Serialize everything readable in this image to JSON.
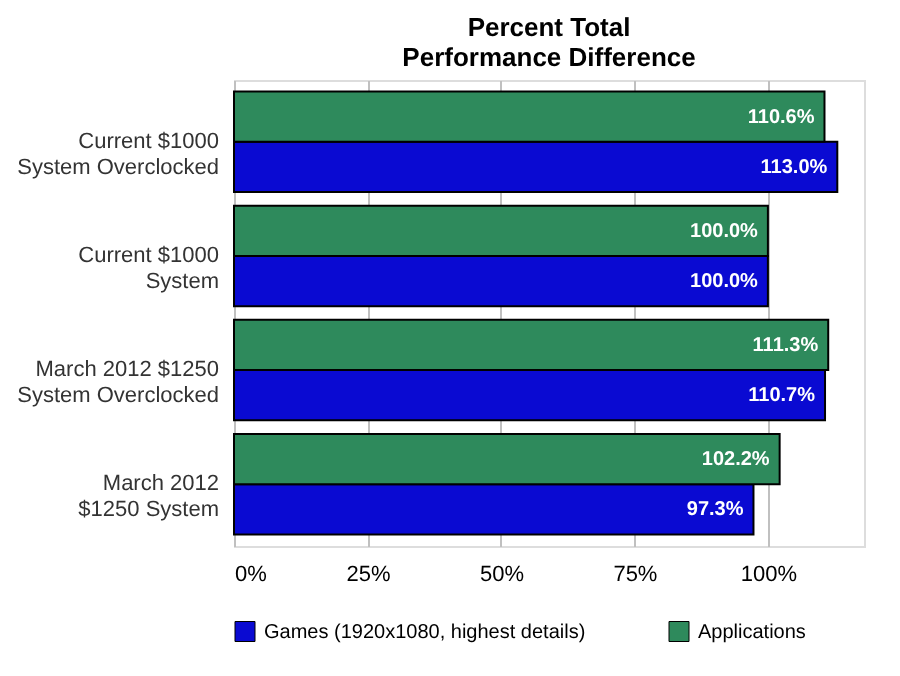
{
  "chart_data": {
    "type": "bar",
    "orientation": "horizontal",
    "title": [
      "Percent Total",
      "Performance Difference"
    ],
    "categories": [
      "Current $1000\nSystem Overclocked",
      "Current $1000\nSystem",
      "March 2012 $1250\nSystem Overclocked",
      "March 2012\n$1250 System"
    ],
    "series": [
      {
        "name": "Games (1920x1080, highest details)",
        "color": "#0a0ad2",
        "values": [
          113.0,
          100.0,
          110.7,
          97.3
        ],
        "value_labels": [
          "113.0%",
          "100.0%",
          "110.7%",
          "97.3%"
        ]
      },
      {
        "name": "Applications",
        "color": "#2e8a5c",
        "values": [
          110.6,
          100.0,
          111.3,
          102.2
        ],
        "value_labels": [
          "110.6%",
          "100.0%",
          "111.3%",
          "102.2%"
        ]
      }
    ],
    "xlim": [
      0,
      118
    ],
    "xticks": [
      {
        "value": 0,
        "label": "0%"
      },
      {
        "value": 25,
        "label": "25%"
      },
      {
        "value": 50,
        "label": "50%"
      },
      {
        "value": 75,
        "label": "75%"
      },
      {
        "value": 100,
        "label": "100%"
      }
    ],
    "grid": "x",
    "legend": "bottom"
  }
}
